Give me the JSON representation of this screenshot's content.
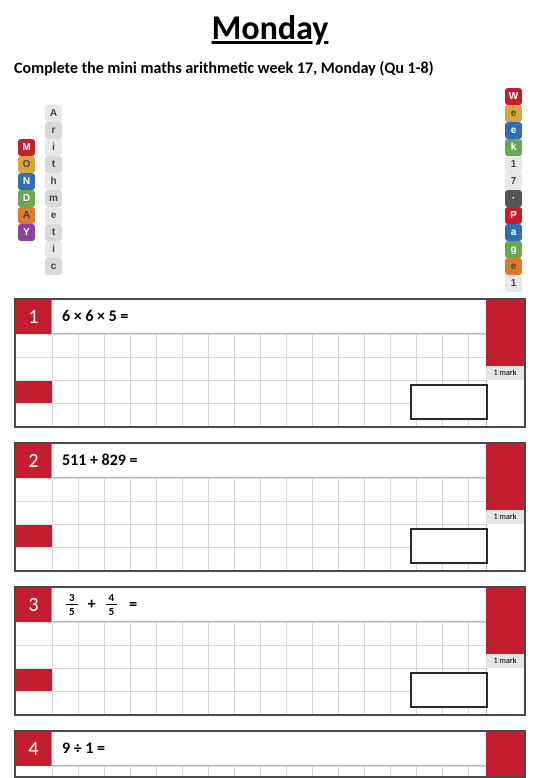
{
  "title": "Monday",
  "subtitle": "Complete the mini maths arithmetic week 17, Monday (Qu 1-8)",
  "badges_left": [
    {
      "t": "M",
      "bg": "#c41e2e"
    },
    {
      "t": "O",
      "bg": "#d9a441"
    },
    {
      "t": "N",
      "bg": "#2e6fb5"
    },
    {
      "t": "D",
      "bg": "#6aa84f"
    },
    {
      "t": "A",
      "bg": "#d97c2e"
    },
    {
      "t": "Y",
      "bg": "#8e3fa0"
    }
  ],
  "badges_mid": [
    {
      "t": "A",
      "bg": "#e8e8e8"
    },
    {
      "t": "r",
      "bg": "#d9d9d9"
    },
    {
      "t": "i",
      "bg": "#e8e8e8"
    },
    {
      "t": "t",
      "bg": "#d9d9d9"
    },
    {
      "t": "h",
      "bg": "#e8e8e8"
    },
    {
      "t": "m",
      "bg": "#d9d9d9"
    },
    {
      "t": "e",
      "bg": "#e8e8e8"
    },
    {
      "t": "t",
      "bg": "#d9d9d9"
    },
    {
      "t": "i",
      "bg": "#e8e8e8"
    },
    {
      "t": "c",
      "bg": "#d9d9d9"
    }
  ],
  "badges_right": [
    {
      "t": "W",
      "bg": "#c41e2e"
    },
    {
      "t": "e",
      "bg": "#d9a441"
    },
    {
      "t": "e",
      "bg": "#2e6fb5"
    },
    {
      "t": "k",
      "bg": "#6aa84f"
    },
    {
      "t": "1",
      "bg": "#e8e8e8"
    },
    {
      "t": "7",
      "bg": "#e8e8e8"
    },
    {
      "t": "·",
      "bg": "#555555"
    },
    {
      "t": "P",
      "bg": "#c41e2e"
    },
    {
      "t": "a",
      "bg": "#2e6fb5"
    },
    {
      "t": "g",
      "bg": "#6aa84f"
    },
    {
      "t": "e",
      "bg": "#d97c2e"
    },
    {
      "t": "1",
      "bg": "#e8e8e8"
    }
  ],
  "questions": [
    {
      "num": "1",
      "text": "6 × 6 × 5 =",
      "mark": "1 mark",
      "frac": false
    },
    {
      "num": "2",
      "text": "511 + 829 =",
      "mark": "1 mark",
      "frac": false
    },
    {
      "num": "3",
      "text": "",
      "mark": "1 mark",
      "frac": true,
      "f1n": "3",
      "f1d": "5",
      "f2n": "4",
      "f2d": "5"
    },
    {
      "num": "4",
      "text": "9 ÷ 1 =",
      "mark": "",
      "frac": false,
      "short": true
    }
  ],
  "colors": {
    "accent": "#c41e2e",
    "grid": "#d5d5d5",
    "border": "#4a4a4a",
    "mark_bg": "#e6e6e6"
  }
}
